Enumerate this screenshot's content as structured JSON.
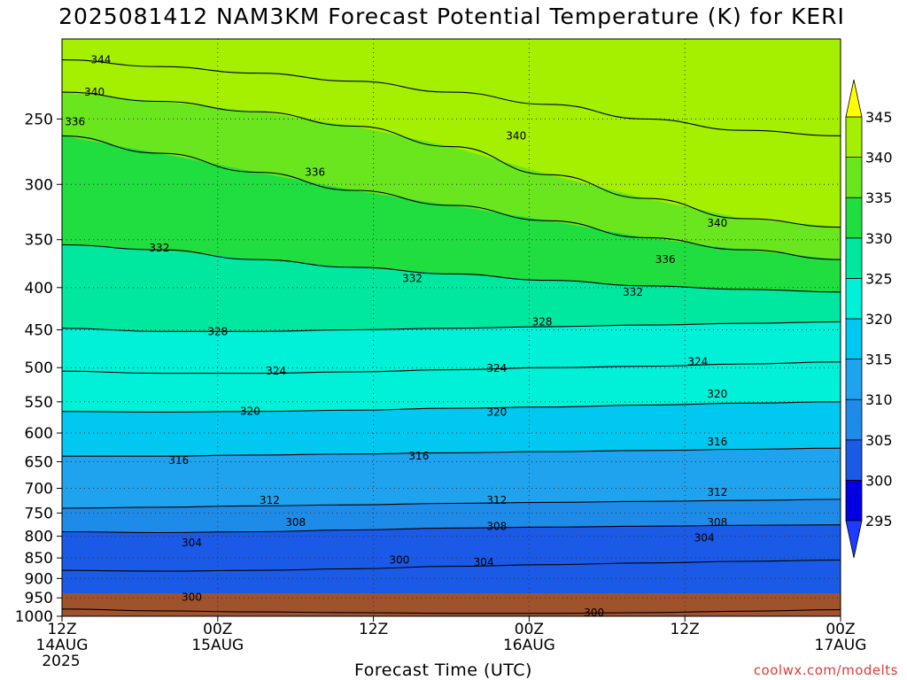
{
  "title": "2025081412 NAM3KM Forecast Potential Temperature (K) for KERI",
  "footer": {
    "xlabel": "Forecast Time (UTC)",
    "credit": "coolwx.com/modelts"
  },
  "chart_data": {
    "type": "contour",
    "title": "2025081412 NAM3KM Forecast Potential Temperature (K) for KERI",
    "xlabel": "Forecast Time (UTC)",
    "ylabel": "",
    "x_range_hours": [
      0,
      60
    ],
    "y_axis": {
      "scale": "log",
      "reversed": true,
      "range": [
        1000,
        200
      ]
    },
    "x_ticks": [
      {
        "hour": 0,
        "lines": [
          "12Z",
          "14AUG",
          "2025"
        ]
      },
      {
        "hour": 12,
        "lines": [
          "00Z",
          "15AUG"
        ]
      },
      {
        "hour": 24,
        "lines": [
          "12Z"
        ]
      },
      {
        "hour": 36,
        "lines": [
          "00Z",
          "16AUG"
        ]
      },
      {
        "hour": 48,
        "lines": [
          "12Z"
        ]
      },
      {
        "hour": 60,
        "lines": [
          "00Z",
          "17AUG"
        ]
      }
    ],
    "y_ticks": [
      250,
      300,
      350,
      400,
      450,
      500,
      550,
      600,
      650,
      700,
      750,
      800,
      850,
      900,
      950,
      1000
    ],
    "colorbar": {
      "levels": [
        295,
        300,
        305,
        310,
        315,
        320,
        325,
        330,
        335,
        340,
        345
      ],
      "colors": [
        "#1e3cff",
        "#0000e0",
        "#1a5ae6",
        "#1f8be8",
        "#1fa3ee",
        "#00c8f0",
        "#00f0d8",
        "#00e8a0",
        "#20de40",
        "#6ae61e",
        "#a4f000",
        "#d8fa00",
        "#ffff00"
      ],
      "extend": "both"
    },
    "ground_color": "#a0522d",
    "contour_interval": 4,
    "contours": [
      {
        "level": 300,
        "pressure": [
          980,
          985,
          988,
          990,
          992,
          992,
          990,
          986,
          982
        ]
      },
      {
        "level": 304,
        "pressure": [
          880,
          882,
          880,
          876,
          870,
          866,
          862,
          858,
          855
        ]
      },
      {
        "level": 308,
        "pressure": [
          790,
          792,
          790,
          786,
          782,
          780,
          778,
          776,
          775
        ]
      },
      {
        "level": 312,
        "pressure": [
          740,
          738,
          735,
          733,
          730,
          728,
          726,
          724,
          722
        ]
      },
      {
        "level": 316,
        "pressure": [
          640,
          640,
          638,
          636,
          634,
          632,
          630,
          628,
          626
        ]
      },
      {
        "level": 320,
        "pressure": [
          565,
          566,
          565,
          563,
          560,
          558,
          555,
          552,
          550
        ]
      },
      {
        "level": 324,
        "pressure": [
          505,
          508,
          508,
          506,
          503,
          500,
          498,
          495,
          492
        ]
      },
      {
        "level": 328,
        "pressure": [
          448,
          452,
          452,
          450,
          448,
          446,
          444,
          442,
          440
        ]
      },
      {
        "level": 332,
        "pressure": [
          355,
          360,
          370,
          378,
          385,
          392,
          398,
          402,
          405
        ]
      },
      {
        "level": 336,
        "pressure": [
          262,
          275,
          290,
          305,
          318,
          332,
          348,
          360,
          370
        ]
      },
      {
        "level": 340,
        "pressure": [
          232,
          238,
          245,
          255,
          270,
          292,
          312,
          330,
          338
        ]
      },
      {
        "level": 344,
        "pressure": [
          212,
          216,
          220,
          225,
          232,
          240,
          250,
          258,
          262
        ]
      }
    ],
    "contour_labels": [
      {
        "text": "344",
        "hour": 3,
        "p": 212
      },
      {
        "text": "340",
        "hour": 2.5,
        "p": 232
      },
      {
        "text": "336",
        "hour": 1.0,
        "p": 252
      },
      {
        "text": "340",
        "hour": 35,
        "p": 262
      },
      {
        "text": "336",
        "hour": 19.5,
        "p": 290
      },
      {
        "text": "340",
        "hour": 50.5,
        "p": 334
      },
      {
        "text": "332",
        "hour": 7.5,
        "p": 358
      },
      {
        "text": "336",
        "hour": 46.5,
        "p": 370
      },
      {
        "text": "332",
        "hour": 27,
        "p": 390
      },
      {
        "text": "332",
        "hour": 44,
        "p": 405
      },
      {
        "text": "328",
        "hour": 37,
        "p": 440
      },
      {
        "text": "328",
        "hour": 12,
        "p": 452
      },
      {
        "text": "324",
        "hour": 49,
        "p": 492
      },
      {
        "text": "324",
        "hour": 16.5,
        "p": 505
      },
      {
        "text": "324",
        "hour": 33.5,
        "p": 501
      },
      {
        "text": "320",
        "hour": 50.5,
        "p": 538
      },
      {
        "text": "320",
        "hour": 14.5,
        "p": 565
      },
      {
        "text": "320",
        "hour": 33.5,
        "p": 566
      },
      {
        "text": "316",
        "hour": 50.5,
        "p": 615
      },
      {
        "text": "316",
        "hour": 9,
        "p": 648
      },
      {
        "text": "316",
        "hour": 27.5,
        "p": 640
      },
      {
        "text": "312",
        "hour": 50.5,
        "p": 708
      },
      {
        "text": "312",
        "hour": 16,
        "p": 724
      },
      {
        "text": "312",
        "hour": 33.5,
        "p": 724
      },
      {
        "text": "308",
        "hour": 18,
        "p": 770
      },
      {
        "text": "308",
        "hour": 33.5,
        "p": 778
      },
      {
        "text": "308",
        "hour": 50.5,
        "p": 770
      },
      {
        "text": "304",
        "hour": 10,
        "p": 815
      },
      {
        "text": "304",
        "hour": 32.5,
        "p": 860
      },
      {
        "text": "304",
        "hour": 49.5,
        "p": 804
      },
      {
        "text": "300",
        "hour": 26,
        "p": 855
      },
      {
        "text": "300",
        "hour": 10,
        "p": 948
      },
      {
        "text": "300",
        "hour": 41,
        "p": 990
      }
    ]
  }
}
